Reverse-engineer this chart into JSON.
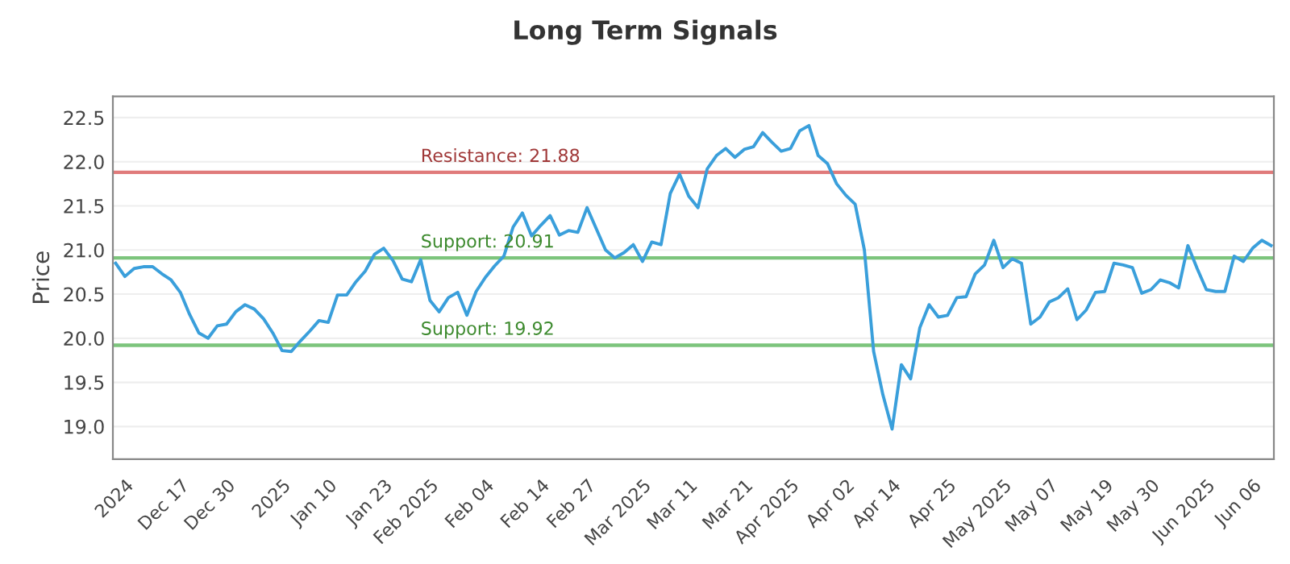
{
  "chart_data": {
    "type": "line",
    "title": "Long Term Signals",
    "ylabel": "Price",
    "categories": [
      null,
      "2024",
      null,
      null,
      null,
      null,
      null,
      "Dec 17",
      null,
      null,
      null,
      null,
      "Dec 30",
      null,
      null,
      null,
      null,
      null,
      "2025",
      null,
      null,
      null,
      null,
      "Jan 10",
      null,
      null,
      null,
      null,
      null,
      "Jan 23",
      null,
      null,
      null,
      null,
      "Feb 2025",
      null,
      null,
      null,
      null,
      null,
      "Feb 04",
      null,
      null,
      null,
      null,
      null,
      "Feb 14",
      null,
      null,
      null,
      null,
      "Feb 27",
      null,
      null,
      null,
      null,
      null,
      "Mar 2025",
      null,
      null,
      null,
      null,
      "Mar 11",
      null,
      null,
      null,
      null,
      null,
      "Mar 21",
      null,
      null,
      null,
      null,
      "Apr 2025",
      null,
      null,
      null,
      null,
      null,
      "Apr 02",
      null,
      null,
      null,
      null,
      "Apr 14",
      null,
      null,
      null,
      null,
      null,
      "Apr 25",
      null,
      null,
      null,
      null,
      null,
      "May 2025",
      null,
      null,
      null,
      null,
      "May 07",
      null,
      null,
      null,
      null,
      null,
      "May 19",
      null,
      null,
      null,
      null,
      "May 30",
      null,
      null,
      null,
      null,
      null,
      "Jun 2025",
      null,
      null,
      null,
      null,
      "Jun 06",
      null,
      null
    ],
    "series": [
      {
        "color": "#3a9fdb",
        "values": [
          20.85,
          20.7,
          20.79,
          20.81,
          20.81,
          20.73,
          20.66,
          20.52,
          20.27,
          20.06,
          20.0,
          20.14,
          20.16,
          20.3,
          20.38,
          20.33,
          20.22,
          20.06,
          19.86,
          19.85,
          19.97,
          20.08,
          20.2,
          20.18,
          20.49,
          20.49,
          20.64,
          20.76,
          20.95,
          21.02,
          20.88,
          20.67,
          20.64,
          20.89,
          20.43,
          20.3,
          20.46,
          20.52,
          20.26,
          20.53,
          20.69,
          20.82,
          20.93,
          21.26,
          21.42,
          21.16,
          21.28,
          21.39,
          21.17,
          21.22,
          21.2,
          21.48,
          21.24,
          21.0,
          20.91,
          20.97,
          21.06,
          20.87,
          21.09,
          21.06,
          21.64,
          21.86,
          21.61,
          21.48,
          21.92,
          22.07,
          22.15,
          22.05,
          22.14,
          22.17,
          22.33,
          22.22,
          22.12,
          22.15,
          22.35,
          22.41,
          22.07,
          21.98,
          21.75,
          21.62,
          21.52,
          21.0,
          19.85,
          19.36,
          18.97,
          19.7,
          19.54,
          20.12,
          20.38,
          20.24,
          20.26,
          20.46,
          20.47,
          20.73,
          20.83,
          21.11,
          20.8,
          20.9,
          20.85,
          20.16,
          20.24,
          20.41,
          20.46,
          20.56,
          20.21,
          20.32,
          20.52,
          20.53,
          20.85,
          20.83,
          20.8,
          20.51,
          20.55,
          20.66,
          20.63,
          20.57,
          21.05,
          20.79,
          20.55,
          20.53,
          20.53,
          20.93,
          20.87,
          21.02,
          21.11,
          21.05
        ]
      }
    ],
    "ylim": [
      18.63,
      22.74
    ],
    "yticks": [
      {
        "value": 19,
        "label": "19.0"
      },
      19.5,
      {
        "value": 20,
        "label": "20.0"
      },
      20.5,
      {
        "value": 21,
        "label": "21.0"
      },
      21.5,
      {
        "value": 22,
        "label": "22.0"
      },
      22.5
    ],
    "grid": "y",
    "legend": false,
    "marker": "none",
    "line_style": "solid",
    "ref_lines": [
      {
        "axis": "y",
        "value": 21.88,
        "label": "Resistance: 21.88",
        "color": "#e07b7b"
      },
      {
        "axis": "y",
        "value": 20.91,
        "label": "Support: 20.91",
        "color": "#7cc47c"
      },
      {
        "axis": "y",
        "value": 19.92,
        "label": "Support: 19.92",
        "color": "#7cc47c"
      }
    ]
  }
}
